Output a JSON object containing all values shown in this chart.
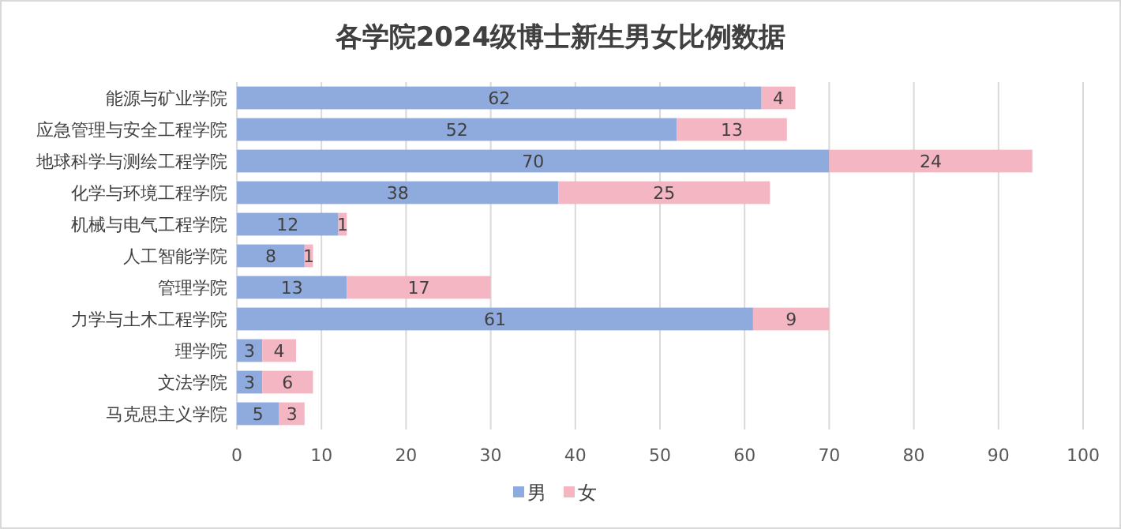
{
  "chart_data": {
    "type": "bar",
    "orientation": "horizontal",
    "stacked": true,
    "title": "各学院2024级博士新生男女比例数据",
    "categories": [
      "能源与矿业学院",
      "应急管理与安全工程学院",
      "地球科学与测绘工程学院",
      "化学与环境工程学院",
      "机械与电气工程学院",
      "人工智能学院",
      "管理学院",
      "力学与土木工程学院",
      "理学院",
      "文法学院",
      "马克思主义学院"
    ],
    "series": [
      {
        "name": "男",
        "color": "#8faadc",
        "values": [
          62,
          52,
          70,
          38,
          12,
          8,
          13,
          61,
          3,
          3,
          5
        ]
      },
      {
        "name": "女",
        "color": "#f4b6c2",
        "values": [
          4,
          13,
          24,
          25,
          1,
          1,
          17,
          9,
          4,
          6,
          3
        ]
      }
    ],
    "xlim": [
      0,
      100
    ],
    "xticks": [
      0,
      10,
      20,
      30,
      40,
      50,
      60,
      70,
      80,
      90,
      100
    ],
    "grid": "x",
    "legend": "bottom",
    "data_labels": true
  }
}
